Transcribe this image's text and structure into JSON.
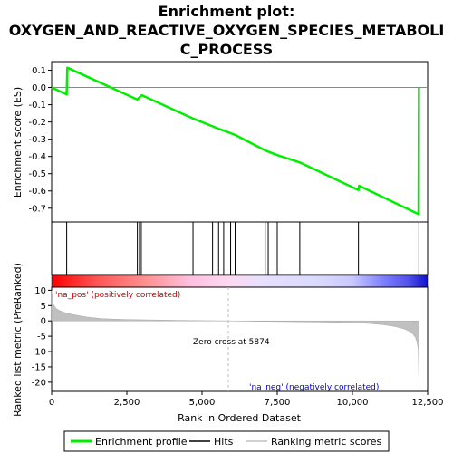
{
  "chart_data": {
    "type": "line",
    "title_lines": [
      "Enrichment plot:",
      "OXYGEN_AND_REACTIVE_OXYGEN_SPECIES_METABOLI",
      "C_PROCESS"
    ],
    "es_panel": {
      "ylabel": "Enrichment score (ES)",
      "ylim": [
        -0.78,
        0.15
      ],
      "yticks": [
        "0.1",
        "0.0",
        "-0.1",
        "-0.2",
        "-0.3",
        "-0.4",
        "-0.5",
        "-0.6",
        "-0.7"
      ],
      "ytick_values": [
        0.1,
        0.0,
        -0.1,
        -0.2,
        -0.3,
        -0.4,
        -0.5,
        -0.6,
        -0.7
      ],
      "x": [
        0,
        500,
        520,
        2850,
        2900,
        2960,
        3000,
        4700,
        5350,
        5550,
        5720,
        5950,
        6100,
        7100,
        7200,
        7500,
        8250,
        10200,
        10220,
        12200,
        12210
      ],
      "es": [
        0.0,
        -0.04,
        0.115,
        -0.07,
        -0.06,
        -0.05,
        -0.045,
        -0.18,
        -0.225,
        -0.24,
        -0.25,
        -0.265,
        -0.275,
        -0.365,
        -0.372,
        -0.392,
        -0.435,
        -0.595,
        -0.57,
        -0.735,
        0.0
      ],
      "color": "#00ee00"
    },
    "hits": [
      500,
      2850,
      2920,
      2980,
      4700,
      5350,
      5550,
      5720,
      5950,
      6100,
      7100,
      7200,
      7500,
      8250,
      10200,
      12210
    ],
    "metric_panel": {
      "ylabel": "Ranked list metric (PreRanked)",
      "ylim": [
        -23,
        11
      ],
      "yticks": [
        "10",
        "5",
        "0",
        "-5",
        "-10",
        "-15",
        "-20"
      ],
      "ytick_values": [
        10,
        5,
        0,
        -5,
        -10,
        -15,
        -20
      ],
      "x": [
        0,
        50,
        150,
        300,
        500,
        800,
        1200,
        1700,
        2500,
        3500,
        4500,
        5874,
        7000,
        8500,
        9500,
        10500,
        11000,
        11400,
        11700,
        11900,
        12000,
        12100,
        12150,
        12190,
        12210
      ],
      "values": [
        10,
        5.5,
        4.0,
        3.2,
        2.5,
        1.9,
        1.2,
        0.7,
        0.45,
        0.3,
        0.15,
        0.0,
        -0.15,
        -0.3,
        -0.45,
        -0.8,
        -1.2,
        -1.8,
        -2.5,
        -3.4,
        -4.2,
        -5.5,
        -7,
        -9.5,
        -22
      ]
    },
    "annotations": {
      "pos": "'na_pos' (positively correlated)",
      "neg": "'na_neg' (negatively correlated)",
      "zero": "Zero cross at 5874",
      "zero_x": 5874
    },
    "xlabel": "Rank in Ordered Dataset",
    "xlim": [
      0,
      12500
    ],
    "xticks": [
      "0",
      "2,500",
      "5,000",
      "7,500",
      "10,000",
      "12,500"
    ],
    "xtick_values": [
      0,
      2500,
      5000,
      7500,
      10000,
      12500
    ],
    "legend": {
      "placement": "bottom",
      "items": [
        "Enrichment profile",
        "Hits",
        "Ranking metric scores"
      ]
    },
    "colors": {
      "profile": "#00ee00",
      "hits": "#000000",
      "metric": "#c0c0c0",
      "pos_text": "#cc0000",
      "neg_text": "#0000cc",
      "zero_line": "#bbbbbb"
    }
  }
}
